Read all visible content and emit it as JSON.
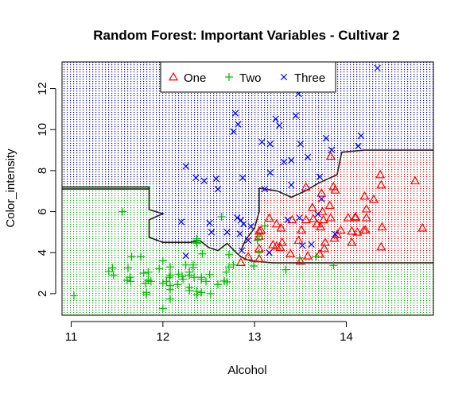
{
  "chart_data": {
    "type": "scatter",
    "title": "Random Forest: Important Variables - Cultivar 2",
    "xlabel": "Alcohol",
    "ylabel": "Color_intensity",
    "xlim": [
      10.9,
      14.95
    ],
    "ylim": [
      0.95,
      13.3
    ],
    "xticks": [
      11,
      12,
      13,
      14
    ],
    "yticks": [
      2,
      4,
      6,
      8,
      10,
      12
    ],
    "legend_position": "top-center",
    "legend": [
      {
        "label": "One",
        "marker": "triangle",
        "color": "#ff0000"
      },
      {
        "label": "Two",
        "marker": "plus",
        "color": "#00bb00"
      },
      {
        "label": "Three",
        "marker": "cross",
        "color": "#0000ff"
      }
    ],
    "background_regions": [
      {
        "class": "Three",
        "color": "#0000aa",
        "polygon": [
          [
            10.9,
            13.3
          ],
          [
            14.95,
            13.3
          ],
          [
            14.95,
            9.0
          ],
          [
            14.2,
            9.0
          ],
          [
            13.95,
            8.9
          ],
          [
            13.9,
            8.2
          ],
          [
            13.8,
            7.7
          ],
          [
            13.7,
            7.4
          ],
          [
            13.55,
            7.0
          ],
          [
            13.4,
            6.8
          ],
          [
            13.25,
            7.0
          ],
          [
            13.1,
            7.1
          ],
          [
            13.05,
            6.0
          ],
          [
            13.0,
            5.2
          ],
          [
            12.9,
            4.6
          ],
          [
            12.85,
            4.0
          ],
          [
            12.75,
            4.2
          ],
          [
            12.7,
            4.4
          ],
          [
            12.6,
            4.2
          ],
          [
            12.5,
            4.3
          ],
          [
            12.4,
            4.4
          ],
          [
            12.3,
            4.4
          ],
          [
            12.0,
            4.4
          ],
          [
            11.9,
            4.6
          ],
          [
            11.9,
            7.3
          ],
          [
            10.9,
            7.3
          ]
        ]
      },
      {
        "class": "Two",
        "color": "#00aa00",
        "polygon": [
          [
            10.9,
            7.3
          ],
          [
            11.9,
            7.3
          ],
          [
            11.9,
            4.6
          ],
          [
            12.0,
            4.4
          ],
          [
            12.3,
            4.4
          ],
          [
            12.4,
            4.4
          ],
          [
            12.5,
            4.3
          ],
          [
            12.6,
            4.2
          ],
          [
            12.7,
            4.4
          ],
          [
            12.75,
            4.2
          ],
          [
            12.85,
            4.0
          ],
          [
            12.9,
            3.8
          ],
          [
            13.0,
            3.6
          ],
          [
            13.1,
            3.5
          ],
          [
            14.95,
            3.5
          ],
          [
            14.95,
            0.95
          ],
          [
            10.9,
            0.95
          ]
        ]
      },
      {
        "class": "One",
        "color": "#dd0000",
        "polygon": [
          [
            14.95,
            9.0
          ],
          [
            14.2,
            9.0
          ],
          [
            13.95,
            8.9
          ],
          [
            13.9,
            8.2
          ],
          [
            13.8,
            7.7
          ],
          [
            13.7,
            7.4
          ],
          [
            13.55,
            7.0
          ],
          [
            13.4,
            6.8
          ],
          [
            13.25,
            7.0
          ],
          [
            13.1,
            7.1
          ],
          [
            13.05,
            6.0
          ],
          [
            13.0,
            5.2
          ],
          [
            12.9,
            4.6
          ],
          [
            12.85,
            4.0
          ],
          [
            12.9,
            3.8
          ],
          [
            13.0,
            3.6
          ],
          [
            13.1,
            3.5
          ],
          [
            14.95,
            3.5
          ]
        ]
      }
    ],
    "boundary_lines": [
      [
        [
          10.9,
          7.2
        ],
        [
          11.85,
          7.2
        ],
        [
          11.85,
          6.1
        ],
        [
          12.0,
          5.9
        ],
        [
          11.85,
          5.6
        ],
        [
          11.85,
          4.75
        ],
        [
          12.0,
          4.5
        ],
        [
          12.3,
          4.5
        ],
        [
          12.4,
          4.6
        ],
        [
          12.5,
          4.25
        ],
        [
          12.6,
          4.1
        ],
        [
          12.7,
          4.45
        ],
        [
          12.8,
          4.0
        ],
        [
          12.85,
          3.8
        ],
        [
          12.95,
          3.6
        ],
        [
          13.2,
          3.5
        ],
        [
          14.95,
          3.5
        ]
      ],
      [
        [
          13.05,
          7.15
        ],
        [
          13.25,
          7.0
        ],
        [
          13.4,
          6.7
        ],
        [
          13.55,
          7.0
        ],
        [
          13.7,
          7.4
        ],
        [
          13.9,
          7.8
        ],
        [
          13.95,
          8.9
        ],
        [
          14.2,
          9.0
        ],
        [
          14.95,
          9.0
        ]
      ],
      [
        [
          13.05,
          7.15
        ],
        [
          13.05,
          6.0
        ],
        [
          13.0,
          5.2
        ],
        [
          12.9,
          4.6
        ],
        [
          12.85,
          4.1
        ]
      ],
      [
        [
          10.9,
          7.1
        ],
        [
          11.85,
          7.1
        ]
      ]
    ],
    "series": [
      {
        "name": "One",
        "marker": "triangle",
        "color": "#ff0000",
        "x": [
          13.2,
          13.16,
          14.37,
          13.24,
          14.2,
          14.39,
          14.06,
          14.83,
          13.86,
          14.1,
          14.12,
          13.75,
          14.75,
          14.38,
          13.63,
          14.3,
          13.83,
          14.19,
          13.64,
          14.06,
          12.93,
          13.71,
          12.85,
          13.5,
          13.05,
          13.39,
          13.3,
          13.87,
          14.02,
          13.73,
          13.58,
          13.68,
          13.76,
          13.51,
          13.48,
          13.28,
          13.05,
          13.07,
          14.22,
          13.56,
          13.41,
          13.88,
          13.24,
          13.05,
          14.21,
          14.38,
          13.9,
          14.1,
          13.94,
          13.05,
          13.83,
          13.82,
          13.77,
          13.74,
          13.56,
          14.22,
          13.29,
          13.72
        ],
        "y": [
          4.38,
          5.68,
          7.8,
          4.32,
          6.75,
          5.25,
          5.05,
          5.2,
          7.22,
          5.75,
          5.0,
          5.6,
          7.5,
          7.3,
          6.2,
          6.6,
          8.7,
          5.1,
          5.65,
          4.5,
          3.8,
          3.93,
          3.52,
          3.58,
          4.8,
          3.95,
          4.5,
          4.7,
          5.7,
          6.9,
          3.84,
          5.4,
          4.2,
          5.1,
          4.6,
          4.25,
          3.7,
          5.1,
          6.13,
          7.2,
          5.6,
          7.05,
          5.4,
          4.2,
          5.1,
          4.28,
          4.88,
          5.7,
          5.1,
          5.05,
          5.7,
          6.3,
          4.5,
          6.0,
          5.6,
          5.7,
          5.2,
          5.25
        ]
      },
      {
        "name": "Two",
        "marker": "plus",
        "color": "#00bb00",
        "x": [
          12.37,
          12.33,
          12.64,
          13.67,
          12.37,
          12.17,
          12.37,
          13.11,
          12.37,
          13.34,
          12.21,
          12.29,
          13.86,
          13.49,
          12.99,
          11.96,
          11.66,
          13.03,
          11.84,
          12.33,
          12.7,
          12.0,
          12.72,
          12.08,
          13.05,
          11.84,
          12.67,
          12.16,
          11.65,
          11.64,
          12.08,
          12.08,
          12.0,
          12.69,
          12.29,
          11.62,
          12.47,
          11.81,
          12.29,
          12.37,
          12.29,
          12.08,
          12.6,
          12.34,
          11.82,
          12.51,
          12.42,
          12.25,
          12.72,
          12.22,
          11.61,
          11.46,
          12.52,
          11.76,
          11.41,
          12.08,
          11.03,
          11.82,
          12.42,
          12.77,
          12.0,
          11.45,
          11.56,
          12.42,
          13.05,
          11.87,
          12.07,
          12.43,
          11.79,
          12.37,
          12.04
        ],
        "y": [
          1.95,
          3.27,
          5.75,
          3.8,
          4.45,
          2.95,
          4.6,
          5.3,
          4.68,
          3.17,
          2.85,
          3.05,
          3.38,
          3.74,
          3.35,
          3.21,
          3.8,
          4.6,
          2.65,
          3.4,
          2.57,
          2.5,
          3.9,
          2.2,
          4.8,
          3.05,
          2.62,
          2.45,
          2.6,
          2.8,
          1.74,
          2.4,
          3.6,
          3.05,
          2.15,
          3.25,
          2.6,
          2.5,
          2.9,
          4.5,
          2.3,
          3.3,
          2.45,
          2.8,
          2.06,
          2.94,
          2.7,
          3.4,
          3.3,
          2.7,
          2.65,
          2.9,
          2.0,
          3.8,
          3.08,
          2.9,
          1.9,
          1.95,
          2.06,
          3.4,
          1.28,
          3.25,
          6.0,
          2.8,
          4.0,
          2.6,
          2.8,
          3.94,
          3.0,
          2.12,
          2.6
        ]
      },
      {
        "name": "Three",
        "marker": "cross",
        "color": "#0000ff",
        "x": [
          12.86,
          12.88,
          12.81,
          12.7,
          12.51,
          12.6,
          12.25,
          12.53,
          13.49,
          12.84,
          12.93,
          13.36,
          13.52,
          13.62,
          12.25,
          13.16,
          13.88,
          12.87,
          13.32,
          13.08,
          13.5,
          12.79,
          13.11,
          13.23,
          12.58,
          13.17,
          13.84,
          12.45,
          14.34,
          13.48,
          12.36,
          13.69,
          12.85,
          12.96,
          13.78,
          13.73,
          13.45,
          12.82,
          13.58,
          13.4,
          12.2,
          12.77,
          14.16,
          13.71,
          13.4,
          13.27,
          13.17,
          14.13
        ],
        "y": [
          4.1,
          5.4,
          5.7,
          5.0,
          5.45,
          7.1,
          3.85,
          5.0,
          5.7,
          4.92,
          4.6,
          5.6,
          4.35,
          4.4,
          8.21,
          4.0,
          4.9,
          7.65,
          8.42,
          9.4,
          9.3,
          10.8,
          7.1,
          10.52,
          7.6,
          7.9,
          9.01,
          7.5,
          13.0,
          11.75,
          7.65,
          5.88,
          5.58,
          5.28,
          9.58,
          6.62,
          10.68,
          10.26,
          8.66,
          8.5,
          5.5,
          9.899999,
          9.7,
          7.7,
          7.3,
          10.2,
          9.3,
          9.2
        ]
      }
    ]
  }
}
